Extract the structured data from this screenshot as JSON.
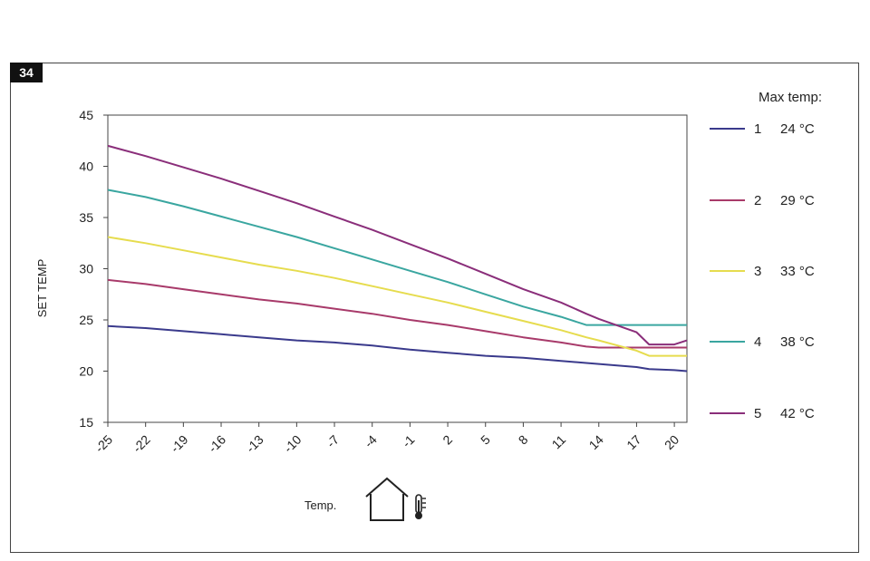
{
  "figure": {
    "number": "34"
  },
  "chart_data": {
    "type": "line",
    "xlabel": "Temp.",
    "ylabel": "SET TEMP",
    "xlim": [
      -25,
      21
    ],
    "ylim": [
      15,
      45
    ],
    "x_ticks": [
      "-25",
      "-22",
      "-19",
      "-16",
      "-13",
      "-10",
      "-7",
      "-4",
      "-1",
      "2",
      "5",
      "8",
      "11",
      "14",
      "17",
      "20"
    ],
    "y_ticks": [
      "45",
      "40",
      "35",
      "30",
      "25",
      "20",
      "15"
    ],
    "legend_title": "Max temp:",
    "legend_position": "right",
    "grid": false,
    "x": [
      -25,
      -22,
      -19,
      -16,
      -13,
      -10,
      -7,
      -4,
      -1,
      2,
      5,
      8,
      11,
      13,
      14,
      17,
      18,
      20,
      21
    ],
    "series": [
      {
        "name": "1",
        "label": "24 °C",
        "color": "#3a3a8c",
        "values": [
          24.4,
          24.2,
          23.9,
          23.6,
          23.3,
          23.0,
          22.8,
          22.5,
          22.1,
          21.8,
          21.5,
          21.3,
          21.0,
          20.8,
          20.7,
          20.4,
          20.2,
          20.1,
          20.0
        ]
      },
      {
        "name": "2",
        "label": "29 °C",
        "color": "#a83a6a",
        "values": [
          28.9,
          28.5,
          28.0,
          27.5,
          27.0,
          26.6,
          26.1,
          25.6,
          25.0,
          24.5,
          23.9,
          23.3,
          22.8,
          22.4,
          22.3,
          22.3,
          22.3,
          22.3,
          22.3
        ]
      },
      {
        "name": "3",
        "label": "33 °C",
        "color": "#e6dc4e",
        "values": [
          33.1,
          32.5,
          31.8,
          31.1,
          30.4,
          29.8,
          29.1,
          28.3,
          27.5,
          26.7,
          25.8,
          24.9,
          24.0,
          23.3,
          23.0,
          22.0,
          21.5,
          21.5,
          21.5
        ]
      },
      {
        "name": "4",
        "label": "38 °C",
        "color": "#3aa6a0",
        "values": [
          37.7,
          37.0,
          36.1,
          35.1,
          34.1,
          33.1,
          32.0,
          30.9,
          29.8,
          28.7,
          27.5,
          26.3,
          25.3,
          24.5,
          24.5,
          24.5,
          24.5,
          24.5,
          24.5
        ]
      },
      {
        "name": "5",
        "label": "42 °C",
        "color": "#8a2e7a",
        "values": [
          42.0,
          41.0,
          39.9,
          38.8,
          37.6,
          36.4,
          35.1,
          33.8,
          32.4,
          31.0,
          29.5,
          28.0,
          26.7,
          25.6,
          25.1,
          23.8,
          22.6,
          22.6,
          23.0
        ]
      }
    ]
  },
  "icons": {
    "house": "house-icon",
    "thermometer": "thermometer-icon"
  }
}
